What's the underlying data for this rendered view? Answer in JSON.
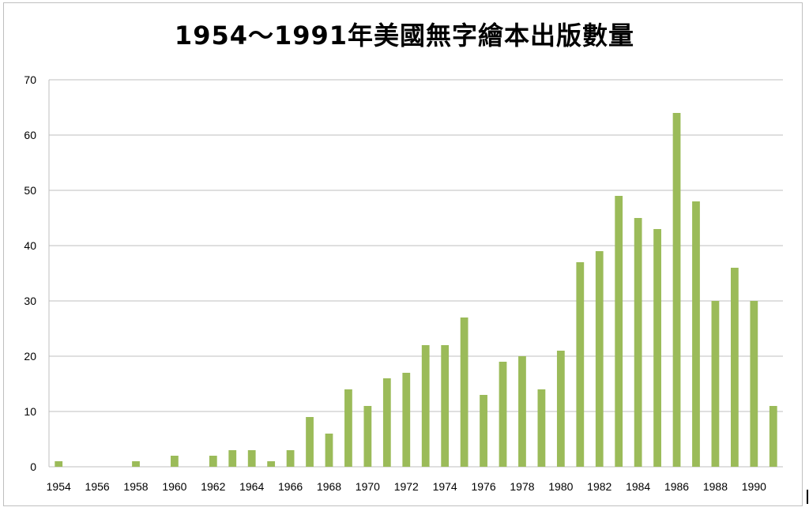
{
  "chart_data": {
    "type": "bar",
    "title": "1954～1991年美國無字繪本出版數量",
    "xlabel": "",
    "ylabel": "",
    "ylim": [
      0,
      70
    ],
    "yticks": [
      0,
      10,
      20,
      30,
      40,
      50,
      60,
      70
    ],
    "grid": true,
    "legend": "none",
    "bar_color": "#9bbb59",
    "grid_color": "#bfbfbf",
    "categories": [
      "1954",
      "1955",
      "1956",
      "1957",
      "1958",
      "1959",
      "1960",
      "1961",
      "1962",
      "1963",
      "1964",
      "1965",
      "1966",
      "1967",
      "1968",
      "1969",
      "1970",
      "1971",
      "1972",
      "1973",
      "1974",
      "1975",
      "1976",
      "1977",
      "1978",
      "1979",
      "1980",
      "1981",
      "1982",
      "1983",
      "1984",
      "1985",
      "1986",
      "1987",
      "1988",
      "1989",
      "1990",
      "1991"
    ],
    "x_tick_labels": [
      "1954",
      "",
      "1956",
      "",
      "1958",
      "",
      "1960",
      "",
      "1962",
      "",
      "1964",
      "",
      "1966",
      "",
      "1968",
      "",
      "1970",
      "",
      "1972",
      "",
      "1974",
      "",
      "1976",
      "",
      "1978",
      "",
      "1980",
      "",
      "1982",
      "",
      "1984",
      "",
      "1986",
      "",
      "1988",
      "",
      "1990",
      ""
    ],
    "values": [
      1,
      0,
      0,
      0,
      1,
      0,
      2,
      0,
      2,
      3,
      3,
      1,
      3,
      9,
      6,
      14,
      11,
      16,
      17,
      22,
      22,
      27,
      13,
      19,
      20,
      14,
      21,
      37,
      39,
      49,
      45,
      43,
      64,
      48,
      30,
      36,
      30,
      11
    ]
  }
}
